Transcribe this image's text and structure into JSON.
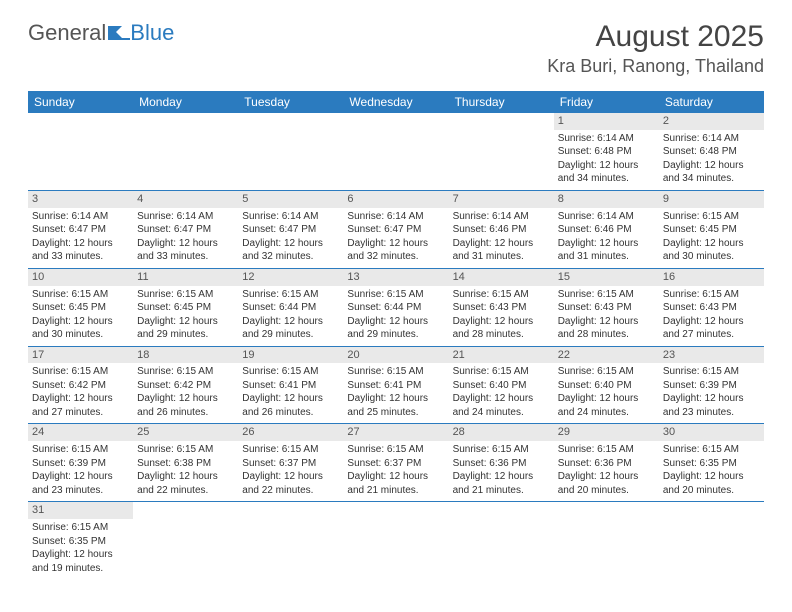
{
  "logo": {
    "part1": "General",
    "part2": "Blue"
  },
  "header": {
    "month": "August 2025",
    "location": "Kra Buri, Ranong, Thailand"
  },
  "colors": {
    "header_bg": "#2b7bbf",
    "header_text": "#ffffff",
    "daynum_bg": "#e9e9e9",
    "row_border": "#2b7bbf",
    "logo_blue": "#2b7bbf",
    "logo_gray": "#555555"
  },
  "weekdays": [
    "Sunday",
    "Monday",
    "Tuesday",
    "Wednesday",
    "Thursday",
    "Friday",
    "Saturday"
  ],
  "weeks": [
    [
      null,
      null,
      null,
      null,
      null,
      {
        "n": "1",
        "sr": "Sunrise: 6:14 AM",
        "ss": "Sunset: 6:48 PM",
        "dl1": "Daylight: 12 hours",
        "dl2": "and 34 minutes."
      },
      {
        "n": "2",
        "sr": "Sunrise: 6:14 AM",
        "ss": "Sunset: 6:48 PM",
        "dl1": "Daylight: 12 hours",
        "dl2": "and 34 minutes."
      }
    ],
    [
      {
        "n": "3",
        "sr": "Sunrise: 6:14 AM",
        "ss": "Sunset: 6:47 PM",
        "dl1": "Daylight: 12 hours",
        "dl2": "and 33 minutes."
      },
      {
        "n": "4",
        "sr": "Sunrise: 6:14 AM",
        "ss": "Sunset: 6:47 PM",
        "dl1": "Daylight: 12 hours",
        "dl2": "and 33 minutes."
      },
      {
        "n": "5",
        "sr": "Sunrise: 6:14 AM",
        "ss": "Sunset: 6:47 PM",
        "dl1": "Daylight: 12 hours",
        "dl2": "and 32 minutes."
      },
      {
        "n": "6",
        "sr": "Sunrise: 6:14 AM",
        "ss": "Sunset: 6:47 PM",
        "dl1": "Daylight: 12 hours",
        "dl2": "and 32 minutes."
      },
      {
        "n": "7",
        "sr": "Sunrise: 6:14 AM",
        "ss": "Sunset: 6:46 PM",
        "dl1": "Daylight: 12 hours",
        "dl2": "and 31 minutes."
      },
      {
        "n": "8",
        "sr": "Sunrise: 6:14 AM",
        "ss": "Sunset: 6:46 PM",
        "dl1": "Daylight: 12 hours",
        "dl2": "and 31 minutes."
      },
      {
        "n": "9",
        "sr": "Sunrise: 6:15 AM",
        "ss": "Sunset: 6:45 PM",
        "dl1": "Daylight: 12 hours",
        "dl2": "and 30 minutes."
      }
    ],
    [
      {
        "n": "10",
        "sr": "Sunrise: 6:15 AM",
        "ss": "Sunset: 6:45 PM",
        "dl1": "Daylight: 12 hours",
        "dl2": "and 30 minutes."
      },
      {
        "n": "11",
        "sr": "Sunrise: 6:15 AM",
        "ss": "Sunset: 6:45 PM",
        "dl1": "Daylight: 12 hours",
        "dl2": "and 29 minutes."
      },
      {
        "n": "12",
        "sr": "Sunrise: 6:15 AM",
        "ss": "Sunset: 6:44 PM",
        "dl1": "Daylight: 12 hours",
        "dl2": "and 29 minutes."
      },
      {
        "n": "13",
        "sr": "Sunrise: 6:15 AM",
        "ss": "Sunset: 6:44 PM",
        "dl1": "Daylight: 12 hours",
        "dl2": "and 29 minutes."
      },
      {
        "n": "14",
        "sr": "Sunrise: 6:15 AM",
        "ss": "Sunset: 6:43 PM",
        "dl1": "Daylight: 12 hours",
        "dl2": "and 28 minutes."
      },
      {
        "n": "15",
        "sr": "Sunrise: 6:15 AM",
        "ss": "Sunset: 6:43 PM",
        "dl1": "Daylight: 12 hours",
        "dl2": "and 28 minutes."
      },
      {
        "n": "16",
        "sr": "Sunrise: 6:15 AM",
        "ss": "Sunset: 6:43 PM",
        "dl1": "Daylight: 12 hours",
        "dl2": "and 27 minutes."
      }
    ],
    [
      {
        "n": "17",
        "sr": "Sunrise: 6:15 AM",
        "ss": "Sunset: 6:42 PM",
        "dl1": "Daylight: 12 hours",
        "dl2": "and 27 minutes."
      },
      {
        "n": "18",
        "sr": "Sunrise: 6:15 AM",
        "ss": "Sunset: 6:42 PM",
        "dl1": "Daylight: 12 hours",
        "dl2": "and 26 minutes."
      },
      {
        "n": "19",
        "sr": "Sunrise: 6:15 AM",
        "ss": "Sunset: 6:41 PM",
        "dl1": "Daylight: 12 hours",
        "dl2": "and 26 minutes."
      },
      {
        "n": "20",
        "sr": "Sunrise: 6:15 AM",
        "ss": "Sunset: 6:41 PM",
        "dl1": "Daylight: 12 hours",
        "dl2": "and 25 minutes."
      },
      {
        "n": "21",
        "sr": "Sunrise: 6:15 AM",
        "ss": "Sunset: 6:40 PM",
        "dl1": "Daylight: 12 hours",
        "dl2": "and 24 minutes."
      },
      {
        "n": "22",
        "sr": "Sunrise: 6:15 AM",
        "ss": "Sunset: 6:40 PM",
        "dl1": "Daylight: 12 hours",
        "dl2": "and 24 minutes."
      },
      {
        "n": "23",
        "sr": "Sunrise: 6:15 AM",
        "ss": "Sunset: 6:39 PM",
        "dl1": "Daylight: 12 hours",
        "dl2": "and 23 minutes."
      }
    ],
    [
      {
        "n": "24",
        "sr": "Sunrise: 6:15 AM",
        "ss": "Sunset: 6:39 PM",
        "dl1": "Daylight: 12 hours",
        "dl2": "and 23 minutes."
      },
      {
        "n": "25",
        "sr": "Sunrise: 6:15 AM",
        "ss": "Sunset: 6:38 PM",
        "dl1": "Daylight: 12 hours",
        "dl2": "and 22 minutes."
      },
      {
        "n": "26",
        "sr": "Sunrise: 6:15 AM",
        "ss": "Sunset: 6:37 PM",
        "dl1": "Daylight: 12 hours",
        "dl2": "and 22 minutes."
      },
      {
        "n": "27",
        "sr": "Sunrise: 6:15 AM",
        "ss": "Sunset: 6:37 PM",
        "dl1": "Daylight: 12 hours",
        "dl2": "and 21 minutes."
      },
      {
        "n": "28",
        "sr": "Sunrise: 6:15 AM",
        "ss": "Sunset: 6:36 PM",
        "dl1": "Daylight: 12 hours",
        "dl2": "and 21 minutes."
      },
      {
        "n": "29",
        "sr": "Sunrise: 6:15 AM",
        "ss": "Sunset: 6:36 PM",
        "dl1": "Daylight: 12 hours",
        "dl2": "and 20 minutes."
      },
      {
        "n": "30",
        "sr": "Sunrise: 6:15 AM",
        "ss": "Sunset: 6:35 PM",
        "dl1": "Daylight: 12 hours",
        "dl2": "and 20 minutes."
      }
    ],
    [
      {
        "n": "31",
        "sr": "Sunrise: 6:15 AM",
        "ss": "Sunset: 6:35 PM",
        "dl1": "Daylight: 12 hours",
        "dl2": "and 19 minutes."
      },
      null,
      null,
      null,
      null,
      null,
      null
    ]
  ]
}
